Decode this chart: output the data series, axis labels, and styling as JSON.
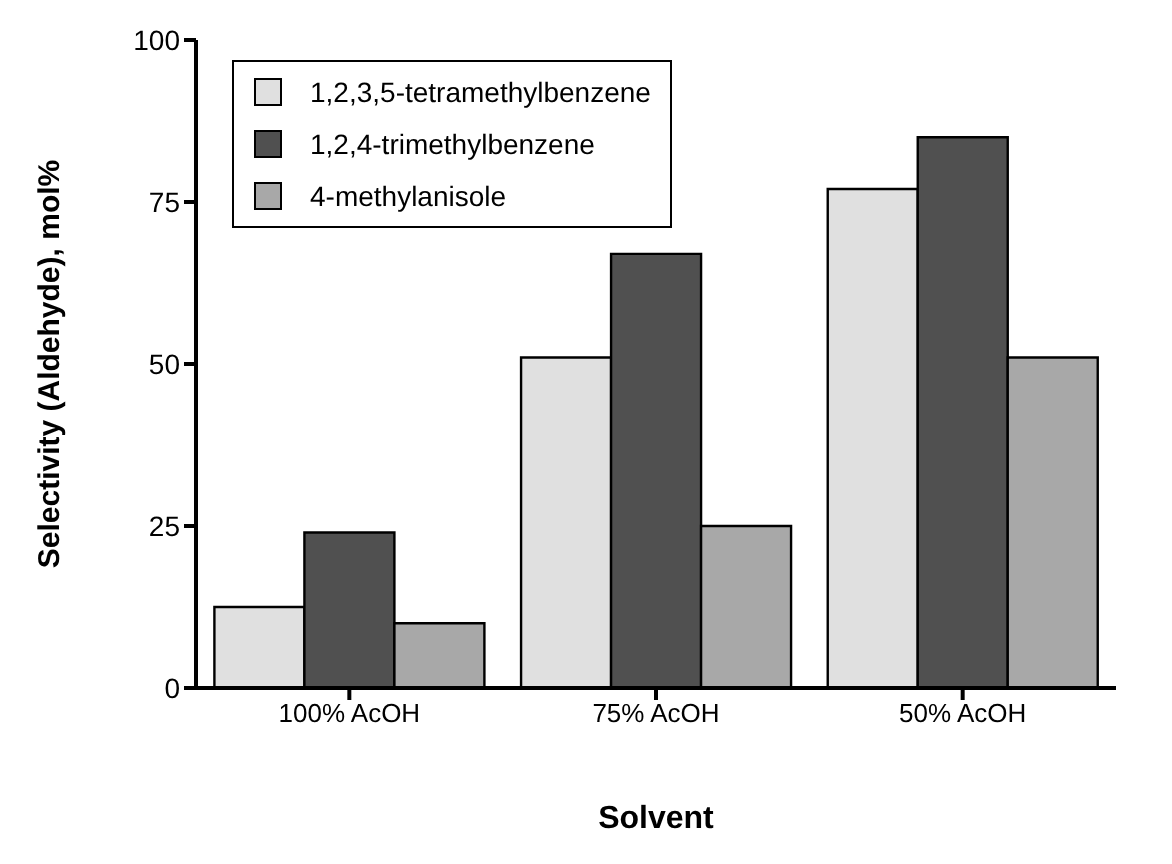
{
  "chart_data": {
    "type": "bar",
    "xlabel": "Solvent",
    "ylabel": "Selectivity  (Aldehyde),  mol%",
    "categories": [
      "100% AcOH",
      "75% AcOH",
      "50% AcOH"
    ],
    "series": [
      {
        "name": "1,2,3,5-tetramethylbenzene",
        "color": "#e0e0e0",
        "values": [
          12.5,
          51,
          77
        ]
      },
      {
        "name": "1,2,4-trimethylbenzene",
        "color": "#505050",
        "values": [
          24,
          67,
          85
        ]
      },
      {
        "name": "4-methylanisole",
        "color": "#a8a8a8",
        "values": [
          10,
          25,
          51
        ]
      }
    ],
    "ylim": [
      0,
      100
    ],
    "yticks": [
      0,
      25,
      50,
      75,
      100
    ],
    "grid": false,
    "legend": "top left"
  }
}
